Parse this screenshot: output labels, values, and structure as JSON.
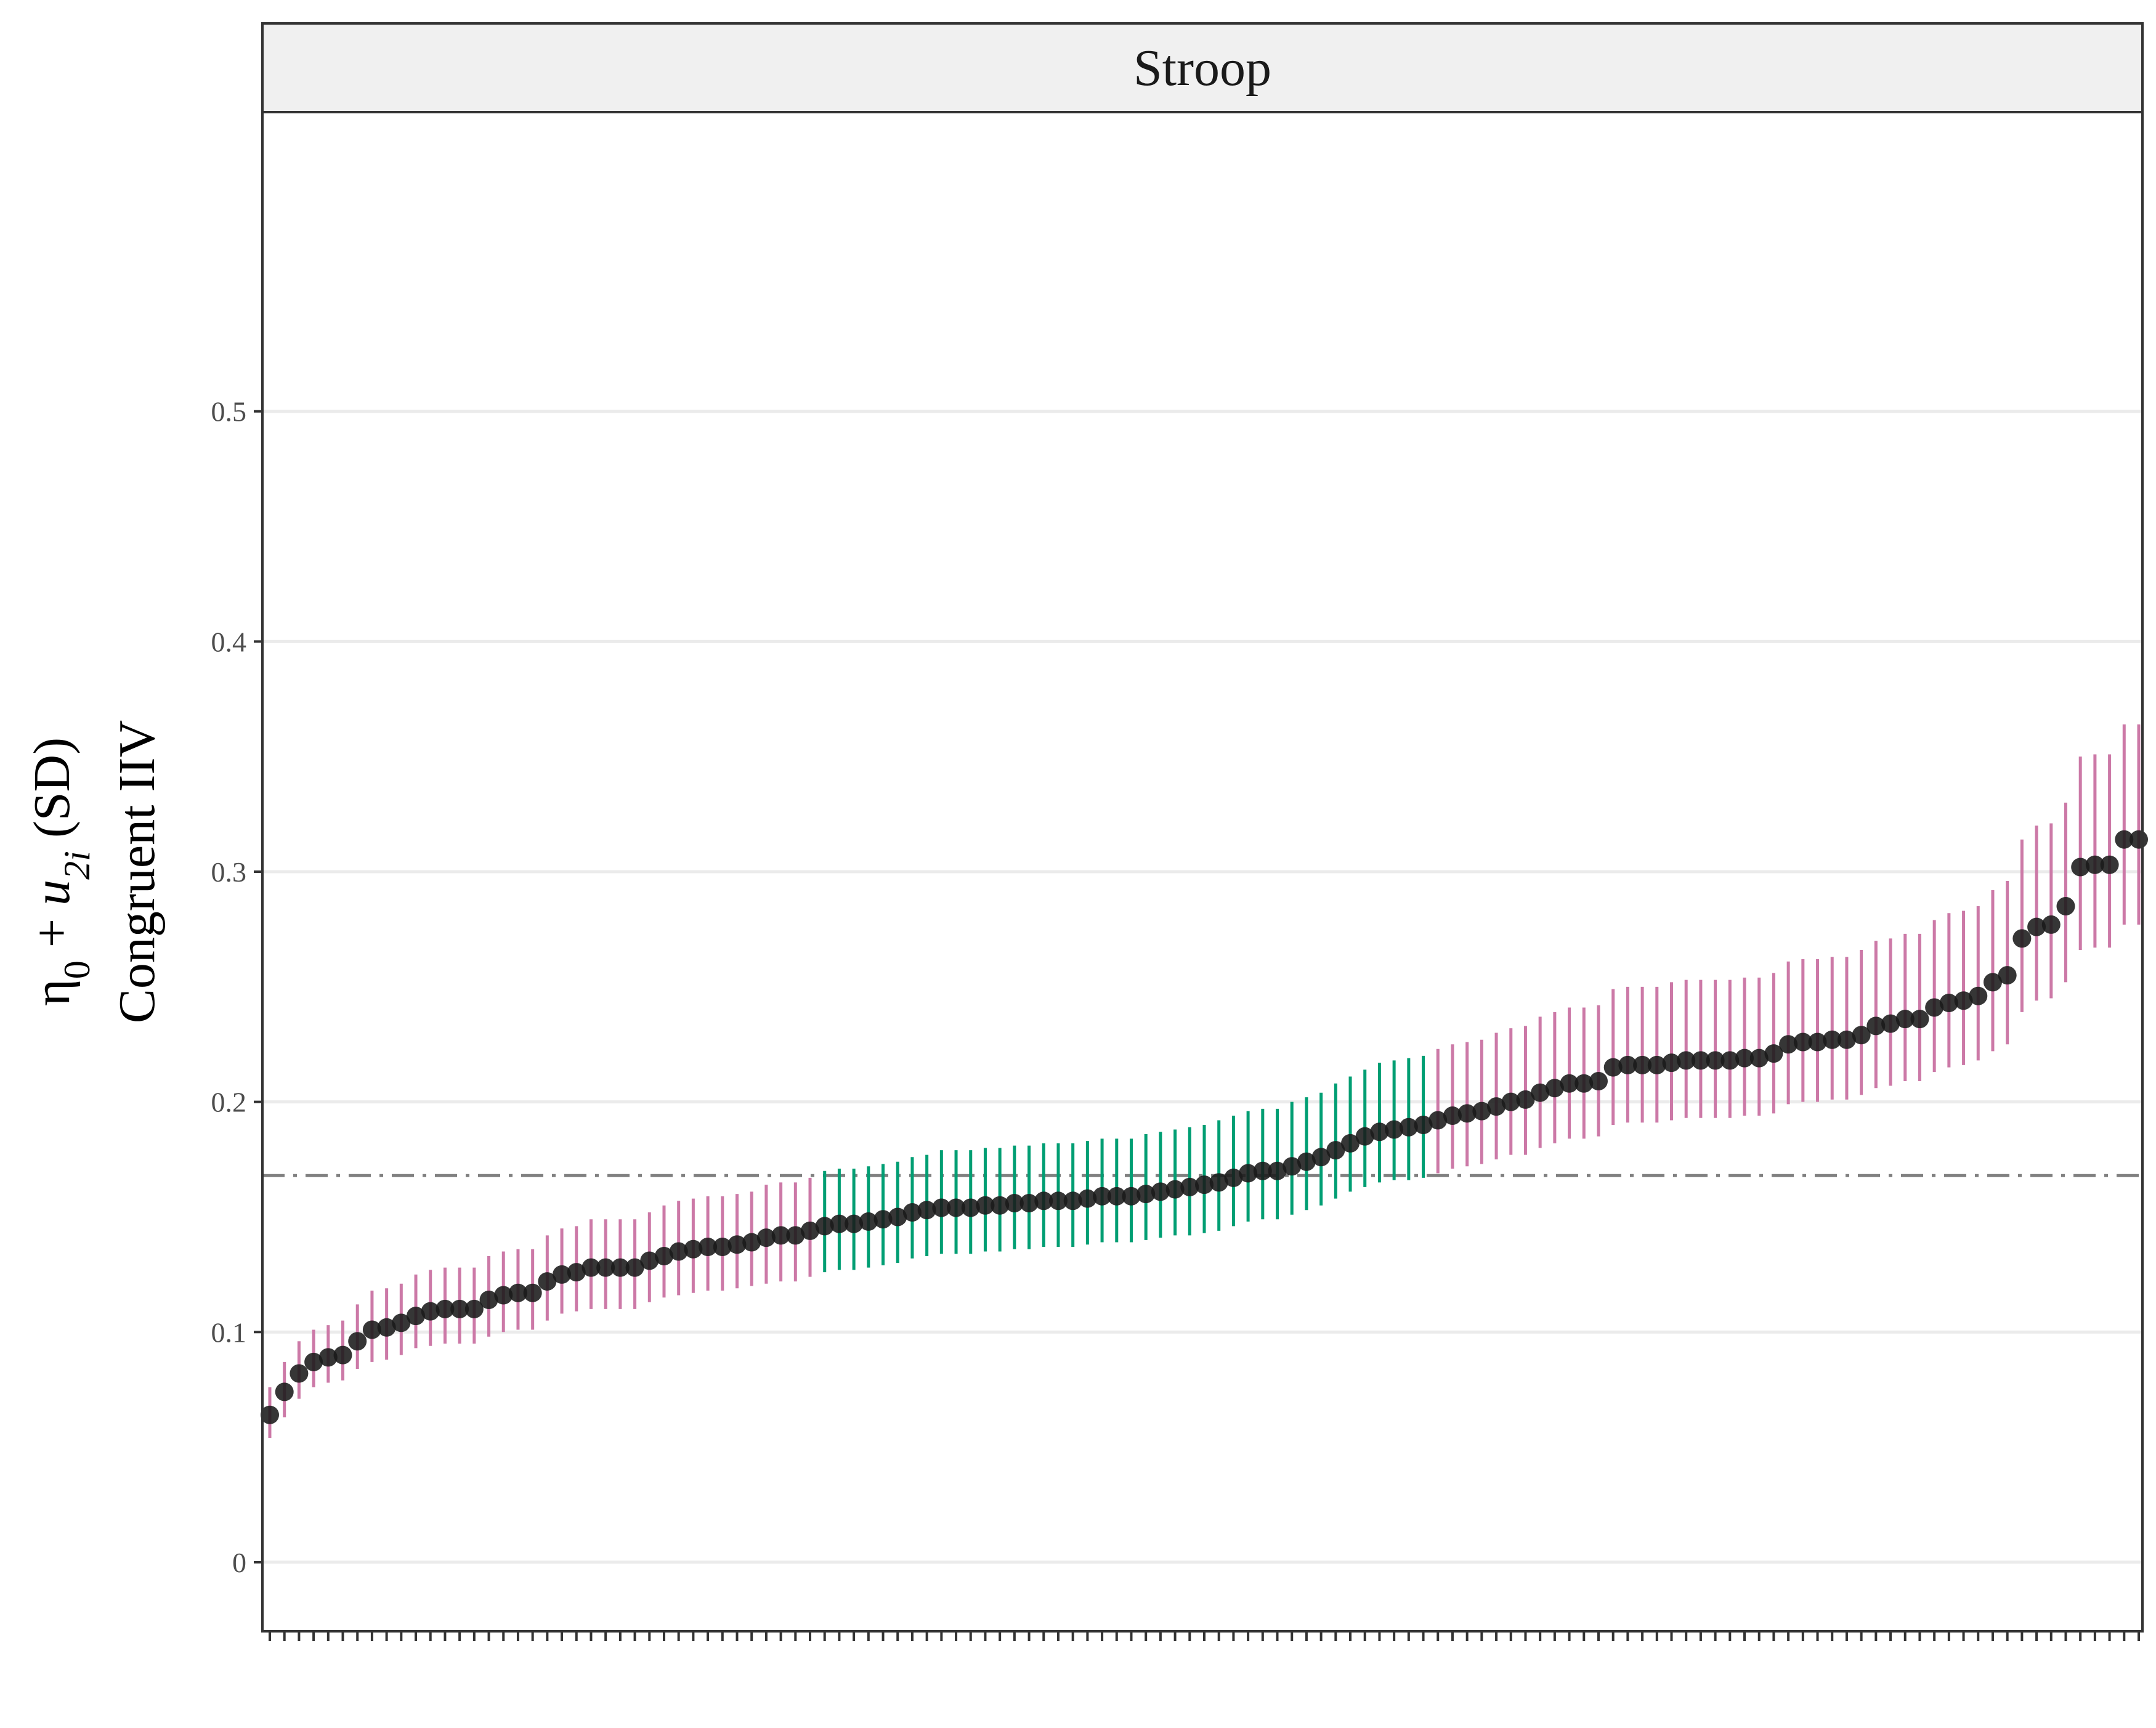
{
  "chart_data": {
    "type": "scatter",
    "panel_title": "Stroop",
    "ylabel_line1_parts": {
      "eta": "η",
      "eta_sub": "0",
      "plus": " + ",
      "u": "u",
      "u_sub": "2i",
      "suffix": "  (SD)"
    },
    "ylabel_line2": "Congruent IIV",
    "xlabel": "",
    "ylim": [
      -0.03,
      0.63
    ],
    "yticks": [
      0,
      0.1,
      0.2,
      0.3,
      0.4,
      0.5
    ],
    "ytick_labels": [
      "0",
      "0.1",
      "0.2",
      "0.3",
      "0.4",
      "0.5"
    ],
    "grid": "horizontal",
    "reference_line": {
      "y": 0.168,
      "style": "dashdot",
      "color": "#808080"
    },
    "colors": {
      "outside": "#CC79A7",
      "overlaps": "#009E73",
      "point": "#1a1a1a",
      "strip_bg": "#F0F0F0",
      "grid": "#EBEBEB"
    },
    "n_points": 124,
    "x": "rank 1-124 (sorted by estimate, no tick labels)",
    "y": [
      0.064,
      0.074,
      0.082,
      0.087,
      0.089,
      0.09,
      0.096,
      0.101,
      0.102,
      0.104,
      0.107,
      0.109,
      0.11,
      0.11,
      0.11,
      0.114,
      0.116,
      0.117,
      0.117,
      0.122,
      0.125,
      0.126,
      0.128,
      0.128,
      0.128,
      0.128,
      0.131,
      0.133,
      0.135,
      0.136,
      0.137,
      0.137,
      0.138,
      0.139,
      0.141,
      0.142,
      0.142,
      0.144,
      0.146,
      0.147,
      0.147,
      0.148,
      0.149,
      0.15,
      0.152,
      0.153,
      0.154,
      0.154,
      0.154,
      0.155,
      0.155,
      0.156,
      0.156,
      0.157,
      0.157,
      0.157,
      0.158,
      0.159,
      0.159,
      0.159,
      0.16,
      0.161,
      0.162,
      0.163,
      0.164,
      0.165,
      0.167,
      0.169,
      0.17,
      0.17,
      0.172,
      0.174,
      0.176,
      0.179,
      0.182,
      0.185,
      0.187,
      0.188,
      0.189,
      0.19,
      0.192,
      0.194,
      0.195,
      0.196,
      0.198,
      0.2,
      0.201,
      0.204,
      0.206,
      0.208,
      0.208,
      0.209,
      0.215,
      0.216,
      0.216,
      0.216,
      0.217,
      0.218,
      0.218,
      0.218,
      0.218,
      0.219,
      0.219,
      0.221,
      0.225,
      0.226,
      0.226,
      0.227,
      0.227,
      0.229,
      0.233,
      0.234,
      0.236,
      0.236,
      0.241,
      0.243,
      0.244,
      0.246,
      0.252,
      0.255,
      0.271,
      0.276,
      0.277,
      0.285,
      0.302,
      0.303,
      0.303,
      0.314,
      0.314
    ],
    "lower": [
      0.054,
      0.063,
      0.071,
      0.076,
      0.078,
      0.079,
      0.084,
      0.087,
      0.088,
      0.09,
      0.093,
      0.094,
      0.095,
      0.095,
      0.095,
      0.098,
      0.1,
      0.101,
      0.101,
      0.105,
      0.108,
      0.109,
      0.11,
      0.11,
      0.11,
      0.11,
      0.113,
      0.115,
      0.116,
      0.117,
      0.118,
      0.118,
      0.119,
      0.12,
      0.121,
      0.122,
      0.122,
      0.124,
      0.126,
      0.127,
      0.127,
      0.128,
      0.129,
      0.13,
      0.132,
      0.133,
      0.134,
      0.134,
      0.134,
      0.135,
      0.135,
      0.136,
      0.136,
      0.137,
      0.137,
      0.137,
      0.138,
      0.139,
      0.139,
      0.139,
      0.14,
      0.141,
      0.142,
      0.142,
      0.143,
      0.144,
      0.146,
      0.148,
      0.149,
      0.149,
      0.151,
      0.153,
      0.155,
      0.158,
      0.161,
      0.163,
      0.165,
      0.166,
      0.166,
      0.167,
      0.169,
      0.171,
      0.172,
      0.173,
      0.175,
      0.177,
      0.177,
      0.18,
      0.182,
      0.184,
      0.184,
      0.185,
      0.19,
      0.191,
      0.191,
      0.191,
      0.192,
      0.193,
      0.193,
      0.193,
      0.193,
      0.194,
      0.194,
      0.195,
      0.199,
      0.2,
      0.2,
      0.201,
      0.201,
      0.203,
      0.206,
      0.207,
      0.209,
      0.209,
      0.213,
      0.215,
      0.216,
      0.218,
      0.222,
      0.225,
      0.239,
      0.244,
      0.245,
      0.252,
      0.266,
      0.267,
      0.267,
      0.277,
      0.277
    ],
    "upper": [
      0.076,
      0.087,
      0.096,
      0.101,
      0.103,
      0.105,
      0.112,
      0.118,
      0.119,
      0.121,
      0.125,
      0.127,
      0.128,
      0.128,
      0.128,
      0.133,
      0.135,
      0.136,
      0.136,
      0.142,
      0.145,
      0.146,
      0.149,
      0.149,
      0.149,
      0.149,
      0.152,
      0.155,
      0.157,
      0.158,
      0.159,
      0.159,
      0.16,
      0.161,
      0.164,
      0.165,
      0.165,
      0.167,
      0.17,
      0.171,
      0.171,
      0.172,
      0.173,
      0.174,
      0.176,
      0.177,
      0.179,
      0.179,
      0.179,
      0.18,
      0.18,
      0.181,
      0.181,
      0.182,
      0.182,
      0.182,
      0.183,
      0.184,
      0.184,
      0.184,
      0.186,
      0.187,
      0.188,
      0.189,
      0.19,
      0.192,
      0.194,
      0.196,
      0.197,
      0.197,
      0.2,
      0.202,
      0.204,
      0.208,
      0.211,
      0.214,
      0.217,
      0.218,
      0.219,
      0.22,
      0.223,
      0.225,
      0.226,
      0.227,
      0.23,
      0.232,
      0.233,
      0.237,
      0.239,
      0.241,
      0.241,
      0.242,
      0.249,
      0.25,
      0.25,
      0.25,
      0.252,
      0.253,
      0.253,
      0.253,
      0.253,
      0.254,
      0.254,
      0.256,
      0.261,
      0.262,
      0.262,
      0.263,
      0.263,
      0.266,
      0.27,
      0.271,
      0.273,
      0.273,
      0.279,
      0.282,
      0.283,
      0.285,
      0.292,
      0.296,
      0.314,
      0.32,
      0.321,
      0.33,
      0.35,
      0.351,
      0.351,
      0.364,
      0.364
    ]
  }
}
